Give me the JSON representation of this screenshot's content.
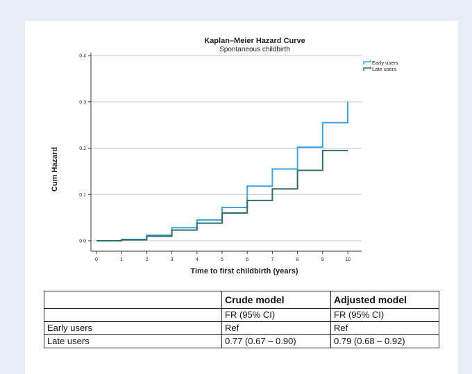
{
  "chart_data": {
    "type": "line",
    "step": true,
    "title": "Kaplan–Meier Hazard Curve",
    "subtitle": "Spontaneous childbirth",
    "xlabel": "Time to first childbirth (years)",
    "ylabel": "Cum Hazard",
    "xlim": [
      0,
      10
    ],
    "ylim": [
      0,
      0.4
    ],
    "xticks": [
      "0",
      "1",
      "2",
      "3",
      "4",
      "5",
      "6",
      "7",
      "8",
      "9",
      "10"
    ],
    "yticks": [
      "0.0",
      "0.1",
      "0.2",
      "0.3",
      "0.4"
    ],
    "grid": "horizontal",
    "legend_position": "top-right",
    "series": [
      {
        "name": "Early users",
        "color": "#3aa6e6",
        "x": [
          0,
          1,
          2,
          3,
          4,
          5,
          6,
          7,
          8,
          9,
          10,
          10
        ],
        "y": [
          0,
          0.003,
          0.012,
          0.028,
          0.045,
          0.072,
          0.118,
          0.155,
          0.202,
          0.255,
          0.255,
          0.3
        ]
      },
      {
        "name": "Late users",
        "color": "#2f6e68",
        "x": [
          0,
          1,
          2,
          3,
          4,
          5,
          6,
          7,
          8,
          9,
          10
        ],
        "y": [
          0,
          0.002,
          0.01,
          0.023,
          0.038,
          0.06,
          0.087,
          0.112,
          0.152,
          0.195,
          0.195
        ]
      }
    ]
  },
  "table": {
    "header_row1": [
      "",
      "Crude model",
      "Adjusted model"
    ],
    "header_row2": [
      "",
      "FR (95% CI)",
      "FR (95% CI)"
    ],
    "rows": [
      {
        "label": "Early users",
        "crude": "Ref",
        "adjusted": "Ref"
      },
      {
        "label": "Late users",
        "crude": "0.77 (0.67 – 0.90)",
        "adjusted": "0.79 (0.68 – 0.92)"
      }
    ]
  }
}
